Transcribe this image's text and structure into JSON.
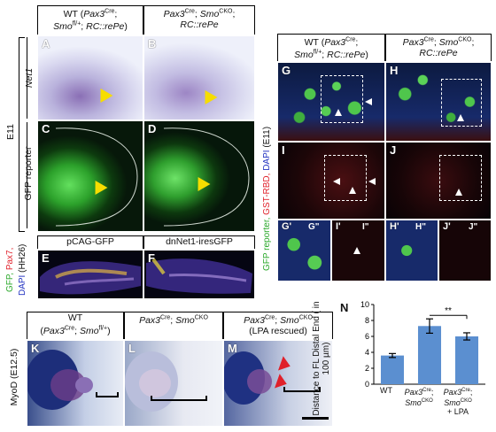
{
  "top_left": {
    "headers": [
      "WT (Pax3Cre; Smofl/+; RC::rePe)",
      "Pax3Cre; SmoCKO; RC::rePe"
    ],
    "stage_label": "E11",
    "row_labels": [
      "Net1",
      "GFP reporter"
    ],
    "panels": [
      "A",
      "B",
      "C",
      "D"
    ]
  },
  "mid_left": {
    "headers": [
      "pCAG-GFP",
      "dnNet1-iresGFP"
    ],
    "side_label": {
      "gfp": "GFP,",
      "pax7": "Pax7,",
      "dapi": "DAPI",
      "stage": "(HH26)"
    },
    "panels": [
      "E",
      "F"
    ]
  },
  "right": {
    "headers": [
      "WT (Pax3Cre; Smofl/+; RC::rePe)",
      "Pax3Cre; SmoCKO; RC::rePe"
    ],
    "side_label": {
      "gfp": "GFP reporter,",
      "gst": "GST-RBD,",
      "dapi": "DAPI",
      "stage": "(E11)"
    },
    "panels": [
      "G",
      "H",
      "I",
      "J",
      "G'",
      "I'",
      "H'",
      "J'",
      "G\"",
      "I\"",
      "H\"",
      "J\""
    ]
  },
  "bottom": {
    "headers": [
      "WT (Pax3Cre; Smofl/+)",
      "Pax3Cre; SmoCKO",
      "Pax3Cre; SmoCKO (LPA rescued)"
    ],
    "side_label": "MyoD (E12.5)",
    "panels": [
      "K",
      "L",
      "M"
    ]
  },
  "panel_n": {
    "letter": "N",
    "significance": "**",
    "chart_data": {
      "type": "bar",
      "categories": [
        "WT",
        "Pax3Cre; SmoCKO",
        "Pax3Cre; SmoCKO + LPA"
      ],
      "values": [
        3.6,
        7.3,
        6.0
      ],
      "errors": [
        0.25,
        0.9,
        0.45
      ],
      "ylabel": "Distance to FL Distal End ( in 100 µm)",
      "ylim": [
        0,
        10
      ],
      "yticks": [
        0,
        2,
        4,
        6,
        8,
        10
      ],
      "bar_color": "#5b8fd0"
    }
  }
}
